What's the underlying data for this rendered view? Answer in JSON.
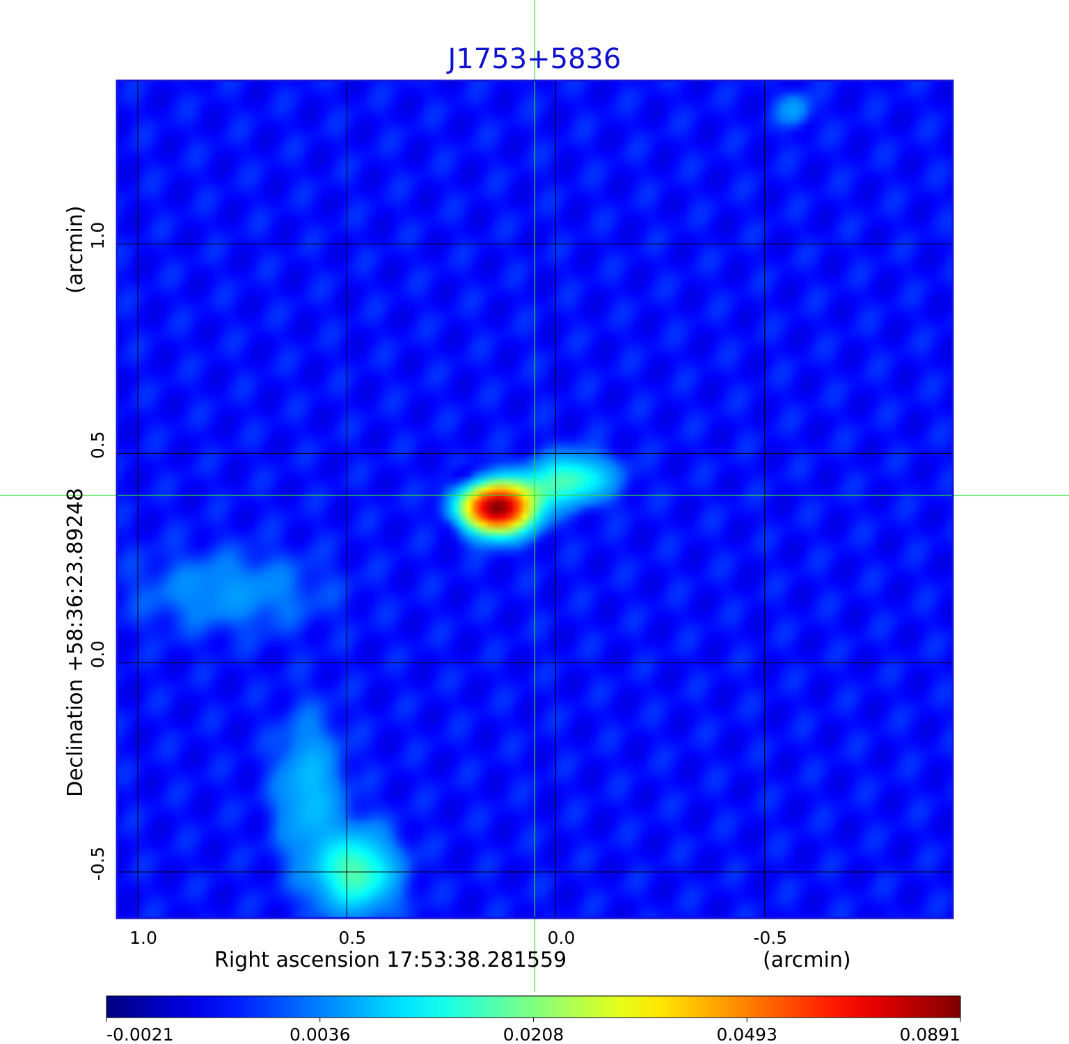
{
  "chart_data": {
    "type": "heatmap",
    "title": "J1753+5836",
    "xlabel": "Right ascension  17:53:38.281559",
    "xunit": "(arcmin)",
    "ylabel": "Declination  +58:36:23.89248",
    "yunit": "(arcmin)",
    "xlim": [
      1.05,
      -0.95
    ],
    "ylim": [
      -0.61,
      1.39
    ],
    "xticks": [
      {
        "value": 1.0,
        "label": "1.0"
      },
      {
        "value": 0.5,
        "label": "0.5"
      },
      {
        "value": 0.0,
        "label": "0.0"
      },
      {
        "value": -0.5,
        "label": "-0.5"
      }
    ],
    "yticks": [
      {
        "value": 1.0,
        "label": "1.0"
      },
      {
        "value": 0.5,
        "label": "0.5"
      },
      {
        "value": 0.0,
        "label": "0.0"
      },
      {
        "value": -0.5,
        "label": "-0.5"
      }
    ],
    "grid": true,
    "crosshair": {
      "x": 0.05,
      "y": 0.4,
      "color": "#33dd33"
    },
    "colormap": "jet",
    "colorbar": {
      "position": "bottom",
      "min": -0.0021,
      "max": 0.0891,
      "ticks": [
        "-0.0021",
        "0.0036",
        "0.0208",
        "0.0493",
        "0.0891"
      ]
    },
    "background_level": 0.001,
    "sources": [
      {
        "x": 0.14,
        "y": 0.37,
        "peak": 0.0891,
        "sx": 0.05,
        "sy": 0.035
      },
      {
        "x": -0.04,
        "y": 0.44,
        "peak": 0.016,
        "sx": 0.06,
        "sy": 0.035
      },
      {
        "x": 0.05,
        "y": 0.41,
        "peak": 0.01,
        "sx": 0.05,
        "sy": 0.03
      },
      {
        "x": 0.48,
        "y": -0.5,
        "peak": 0.018,
        "sx": 0.06,
        "sy": 0.06
      },
      {
        "x": 0.59,
        "y": -0.31,
        "peak": 0.008,
        "sx": 0.05,
        "sy": 0.11
      },
      {
        "x": 0.78,
        "y": 0.17,
        "peak": 0.005,
        "sx": 0.14,
        "sy": 0.06
      },
      {
        "x": -0.57,
        "y": 1.32,
        "peak": 0.006,
        "sx": 0.025,
        "sy": 0.025
      }
    ],
    "negative_blobs": [
      {
        "x": 0.22,
        "y": 0.44,
        "peak": -0.0021,
        "sx": 0.025,
        "sy": 0.02
      },
      {
        "x": 0.24,
        "y": 0.33,
        "peak": -0.0021,
        "sx": 0.025,
        "sy": 0.02
      }
    ]
  }
}
